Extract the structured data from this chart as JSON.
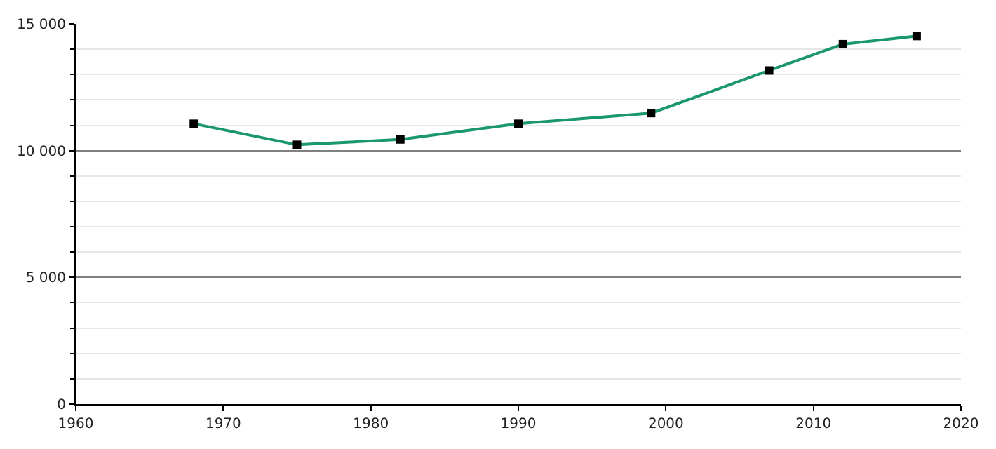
{
  "chart_data": {
    "type": "line",
    "x": [
      1968,
      1975,
      1982,
      1990,
      1999,
      2007,
      2012,
      2017
    ],
    "series": [
      {
        "color": "#1a9670",
        "values": [
          11060,
          10230,
          10440,
          11060,
          11480,
          13160,
          14200,
          14520
        ]
      }
    ],
    "xlim": [
      1960,
      2020
    ],
    "xticks": [
      1960,
      1970,
      1980,
      1990,
      2000,
      2010,
      2020
    ],
    "ylim": [
      0,
      15000
    ],
    "yticks": [
      {
        "value": 0,
        "label": "0"
      },
      {
        "value": 1000,
        "label": null
      },
      {
        "value": 2000,
        "label": null
      },
      {
        "value": 3000,
        "label": null
      },
      {
        "value": 4000,
        "label": null
      },
      {
        "value": 5000,
        "label": "5 000"
      },
      {
        "value": 6000,
        "label": null
      },
      {
        "value": 7000,
        "label": null
      },
      {
        "value": 8000,
        "label": null
      },
      {
        "value": 9000,
        "label": null
      },
      {
        "value": 10000,
        "label": "10 000"
      },
      {
        "value": 11000,
        "label": null
      },
      {
        "value": 12000,
        "label": null
      },
      {
        "value": 13000,
        "label": null
      },
      {
        "value": 14000,
        "label": null
      },
      {
        "value": 15000,
        "label": "15 000"
      }
    ],
    "grid": "y",
    "marker": "square",
    "line_style": "solid",
    "legend": false
  }
}
